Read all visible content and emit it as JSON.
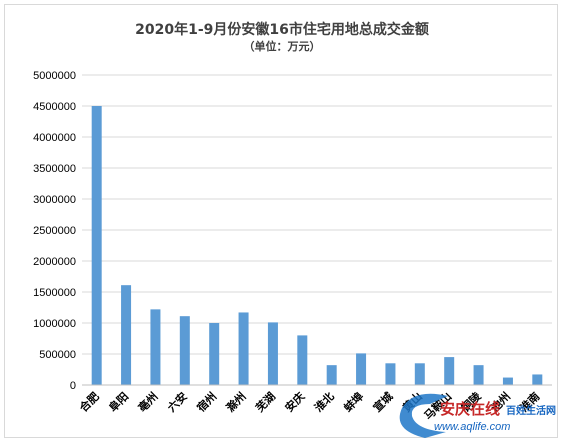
{
  "chart_data": {
    "type": "bar",
    "title": "2020年1-9月份安徽16市住宅用地总成交金额",
    "subtitle": "（单位：万元）",
    "xlabel": "",
    "ylabel": "",
    "ylim": [
      0,
      5000000
    ],
    "yticks": [
      0,
      500000,
      1000000,
      1500000,
      2000000,
      2500000,
      3000000,
      3500000,
      4000000,
      4500000,
      5000000
    ],
    "grid": true,
    "legend": "none",
    "categories": [
      "合肥",
      "阜阳",
      "亳州",
      "六安",
      "宿州",
      "滁州",
      "芜湖",
      "安庆",
      "淮北",
      "蚌埠",
      "宣城",
      "黄山",
      "马鞍山",
      "铜陵",
      "池州",
      "淮南"
    ],
    "values": [
      4500000,
      1610000,
      1220000,
      1110000,
      1000000,
      1170000,
      1010000,
      800000,
      320000,
      510000,
      350000,
      350000,
      450000,
      320000,
      120000,
      170000
    ],
    "bar_color": "#5b9bd5"
  },
  "watermark": {
    "logo_text": "安庆在线",
    "tagline": "百姓生活网",
    "url": "www.aqlife.com"
  }
}
